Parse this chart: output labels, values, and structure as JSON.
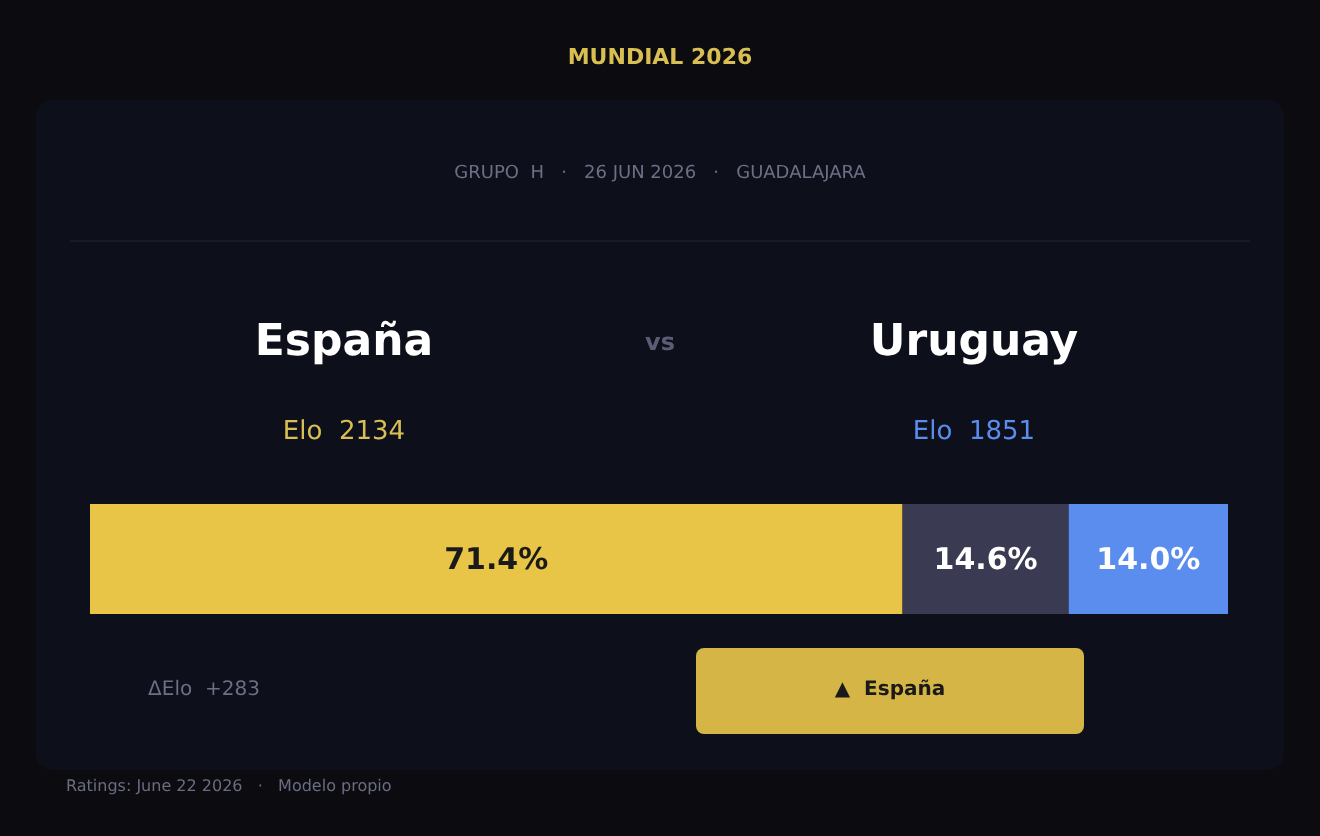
{
  "chart_data": {
    "type": "bar",
    "orientation": "horizontal",
    "stacked": true,
    "title": "MUNDIAL  2026",
    "subtitle": "GRUPO  H   ·   26 JUN 2026   ·   GUADALAJARA",
    "categories": [
      null
    ],
    "xlim": [
      0,
      100
    ],
    "series": [
      {
        "color": "#e8c547",
        "values": [
          71.4
        ],
        "value_labels": [
          "71.4%"
        ]
      },
      {
        "color": "#3a3a52",
        "values": [
          14.6
        ],
        "value_labels": [
          "14.6%"
        ]
      },
      {
        "color": "#5b8def",
        "values": [
          14.0
        ],
        "value_labels": [
          "14.0%"
        ]
      }
    ],
    "annotations": [
      "España",
      "vs",
      "Uruguay",
      "Elo  2134",
      "Elo  1851",
      "ΔElo  +283",
      "▲  España",
      "Ratings: June 22 2026   ·   Modelo propio"
    ]
  }
}
